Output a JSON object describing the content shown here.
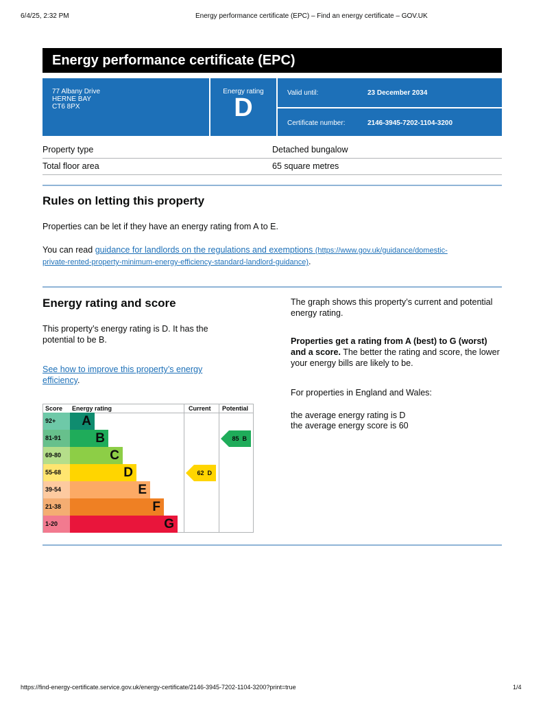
{
  "browser": {
    "datetime": "6/4/25, 2:32 PM",
    "page_title": "Energy performance certificate (EPC) – Find an energy certificate – GOV.UK",
    "url": "https://find-energy-certificate.service.gov.uk/energy-certificate/2146-3945-7202-1104-3200?print=true",
    "page_count": "1/4"
  },
  "header": {
    "title": "Energy performance certificate (EPC)"
  },
  "address": {
    "line1": "77 Albany Drive",
    "line2": "HERNE BAY",
    "line3": "CT6 8PX"
  },
  "rating": {
    "label": "Energy rating",
    "value": "D"
  },
  "valid": {
    "label": "Valid until:",
    "value": "23 December 2034"
  },
  "certificate": {
    "label": "Certificate number:",
    "value": "2146-3945-7202-1104-3200"
  },
  "details": [
    {
      "label": "Property type",
      "value": "Detached bungalow"
    },
    {
      "label": "Total floor area",
      "value": "65 square metres"
    }
  ],
  "rules": {
    "heading": "Rules on letting this property",
    "p1": "Properties can be let if they have an energy rating from A to E.",
    "p2_prefix": "You can read ",
    "link_text": "guidance for landlords on the regulations and exemptions",
    "link_url_1": "(https://www.gov.uk/guidance/domestic-",
    "link_url_2": "private-rented-property-minimum-energy-efficiency-standard-landlord-guidance)",
    "p2_suffix": "."
  },
  "score_section": {
    "heading": "Energy rating and score",
    "p1": "This property’s energy rating is D. It has the potential to be B.",
    "link": "See how to improve this property’s energy efficiency",
    "link_suffix": ".",
    "right_p1": "The graph shows this property’s current and potential energy rating.",
    "right_bold": "Properties get a rating from A (best) to G (worst) and a score.",
    "right_p2": " The better the rating and score, the lower your energy bills are likely to be.",
    "right_p3": "For properties in England and Wales:",
    "avg_rating": "the average energy rating is D",
    "avg_score": "the average energy score is 60"
  },
  "chart_data": {
    "type": "table",
    "headers": [
      "Score",
      "Energy rating",
      "Current",
      "Potential"
    ],
    "bands": [
      {
        "score": "92+",
        "letter": "A",
        "color": "#0f8c6f",
        "score_color": "#6ec9a8"
      },
      {
        "score": "81-91",
        "letter": "B",
        "color": "#1fac5a",
        "score_color": "#67c08c"
      },
      {
        "score": "69-80",
        "letter": "C",
        "color": "#8dce46",
        "score_color": "#b5de8a"
      },
      {
        "score": "55-68",
        "letter": "D",
        "color": "#ffd500",
        "score_color": "#ffe570"
      },
      {
        "score": "39-54",
        "letter": "E",
        "color": "#fcaa65",
        "score_color": "#fdcaa0"
      },
      {
        "score": "21-38",
        "letter": "F",
        "color": "#ef8023",
        "score_color": "#f4ad72"
      },
      {
        "score": "1-20",
        "letter": "G",
        "color": "#e9153b",
        "score_color": "#f27a8f"
      }
    ],
    "current": {
      "score": 62,
      "letter": "D",
      "label": "62  D"
    },
    "potential": {
      "score": 85,
      "letter": "B",
      "label": "85  B"
    }
  }
}
